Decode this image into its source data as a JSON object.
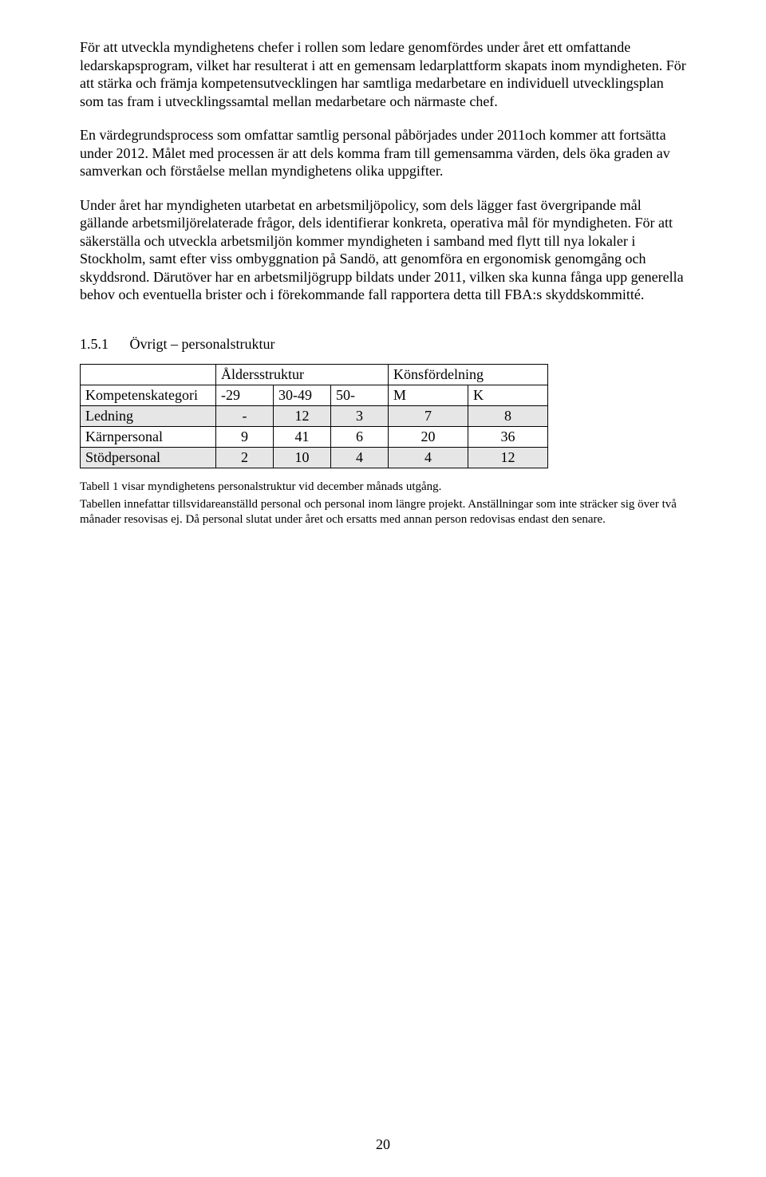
{
  "paragraphs": {
    "p1": "För att utveckla myndighetens chefer i rollen som ledare genomfördes under året ett omfattande ledarskapsprogram, vilket har resulterat i att en gemensam ledarplattform skapats inom myndigheten. För att stärka och främja kompetensutvecklingen har samtliga medarbetare en individuell utvecklingsplan som tas fram i utvecklingssamtal mellan medarbetare och närmaste chef.",
    "p2": "En värdegrundsprocess som omfattar samtlig personal påbörjades under 2011och kommer att fortsätta under 2012. Målet med processen är att dels komma fram till gemensamma värden, dels öka graden av samverkan och förståelse mellan myndighetens olika uppgifter.",
    "p3": "Under året har myndigheten utarbetat en arbetsmiljöpolicy, som dels lägger fast övergripande mål gällande arbetsmiljörelaterade frågor, dels identifierar konkreta, operativa mål för myndigheten. För att säkerställa och utveckla arbetsmiljön kommer myndigheten i samband med flytt till nya lokaler i Stockholm, samt efter viss ombyggnation på Sandö, att genomföra en ergonomisk genomgång och skyddsrond. Därutöver har en arbetsmiljögrupp bildats under 2011, vilken ska kunna fånga upp generella behov och eventuella brister och i förekommande fall rapportera detta till FBA:s skyddskommitté."
  },
  "section": {
    "number": "1.5.1",
    "title": "Övrigt – personalstruktur"
  },
  "table": {
    "group_headers": {
      "age": "Åldersstruktur",
      "gender": "Könsfördelning"
    },
    "col_headers": {
      "category": "Kompetenskategori",
      "age1": "-29",
      "age2": "30-49",
      "age3": "50-",
      "m": "M",
      "k": "K"
    },
    "rows": [
      {
        "label": "Ledning",
        "age1": "-",
        "age2": "12",
        "age3": "3",
        "m": "7",
        "k": "8"
      },
      {
        "label": "Kärnpersonal",
        "age1": "9",
        "age2": "41",
        "age3": "6",
        "m": "20",
        "k": "36"
      },
      {
        "label": "Stödpersonal",
        "age1": "2",
        "age2": "10",
        "age3": "4",
        "m": "4",
        "k": "12"
      }
    ]
  },
  "footnotes": {
    "f1": "Tabell 1 visar myndighetens personalstruktur vid december månads utgång.",
    "f2": "Tabellen innefattar tillsvidareanställd personal och personal inom längre projekt. Anställningar som inte sträcker sig över två månader resovisas ej. Då personal slutat under året och ersatts med annan person redovisas endast den senare."
  },
  "page_number": "20"
}
